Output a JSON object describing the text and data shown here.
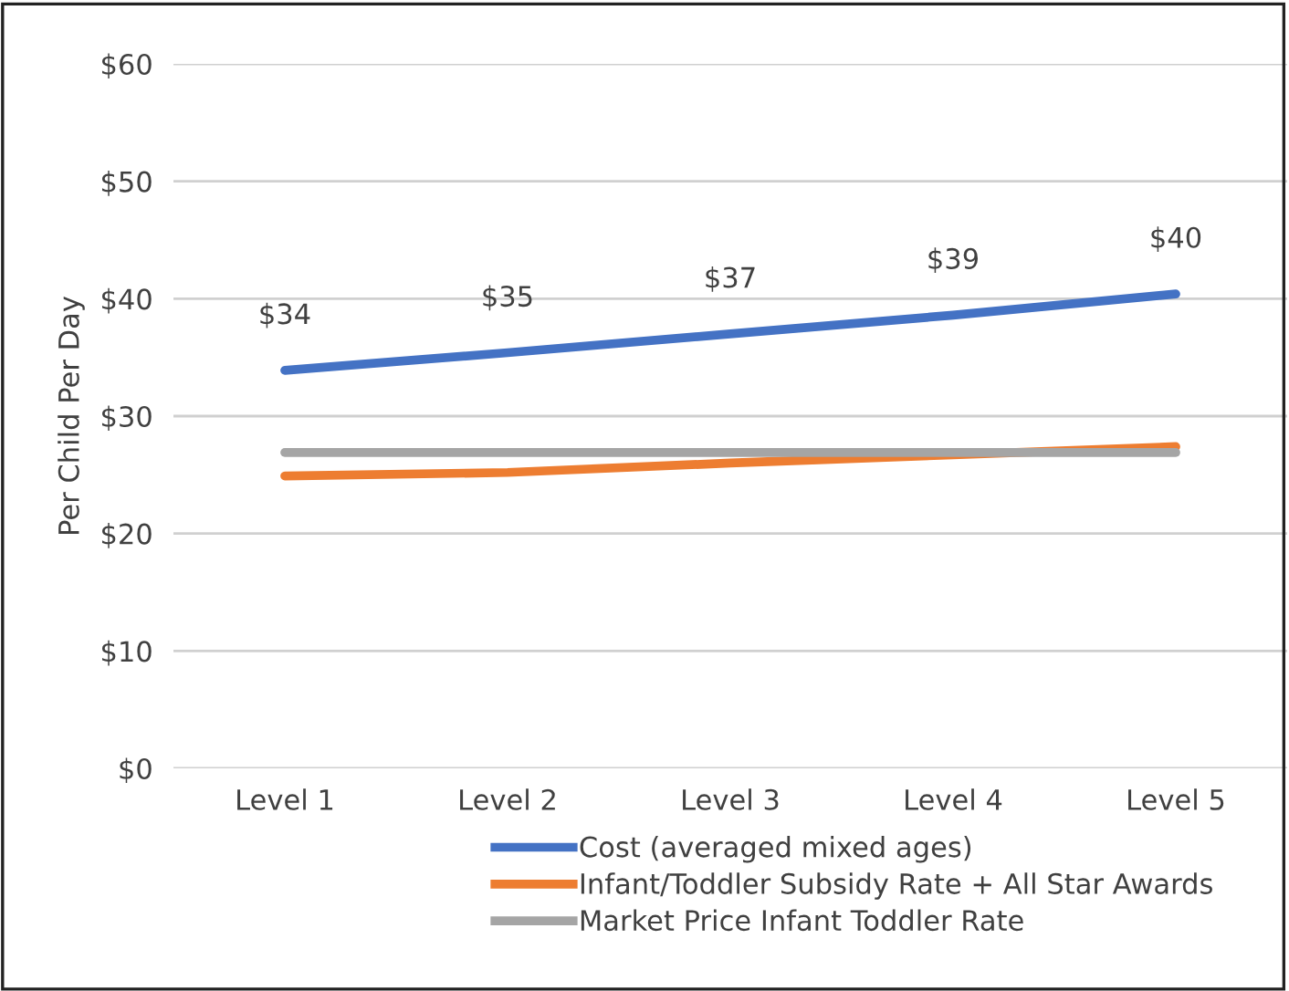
{
  "chart_data": {
    "type": "line",
    "ylabel": "Per Child Per Day",
    "categories": [
      "Level 1",
      "Level 2",
      "Level 3",
      "Level 4",
      "Level 5"
    ],
    "series": [
      {
        "name": "Cost (averaged mixed ages)",
        "color": "#4472c4",
        "values": [
          33.9,
          35.4,
          37.0,
          38.6,
          40.4
        ],
        "value_labels": [
          "$34",
          "$35",
          "$37",
          "$39",
          "$40"
        ]
      },
      {
        "name": "Infant/Toddler Subsidy Rate + All Star Awards",
        "color": "#ed7d31",
        "values": [
          24.9,
          25.2,
          26.0,
          26.7,
          27.4
        ]
      },
      {
        "name": "Market Price Infant Toddler Rate",
        "color": "#a5a5a5",
        "values": [
          26.9,
          26.9,
          26.9,
          26.9,
          26.9
        ]
      }
    ],
    "ylim": [
      0,
      60
    ],
    "yticks": [
      {
        "value": 0,
        "label": "$0"
      },
      {
        "value": 10,
        "label": "$10"
      },
      {
        "value": 20,
        "label": "$20"
      },
      {
        "value": 30,
        "label": "$30"
      },
      {
        "value": 40,
        "label": "$40"
      },
      {
        "value": 50,
        "label": "$50"
      },
      {
        "value": 60,
        "label": "$60"
      }
    ],
    "grid": "y",
    "legend": "bottom",
    "marker": "none",
    "line_style": "solid"
  }
}
